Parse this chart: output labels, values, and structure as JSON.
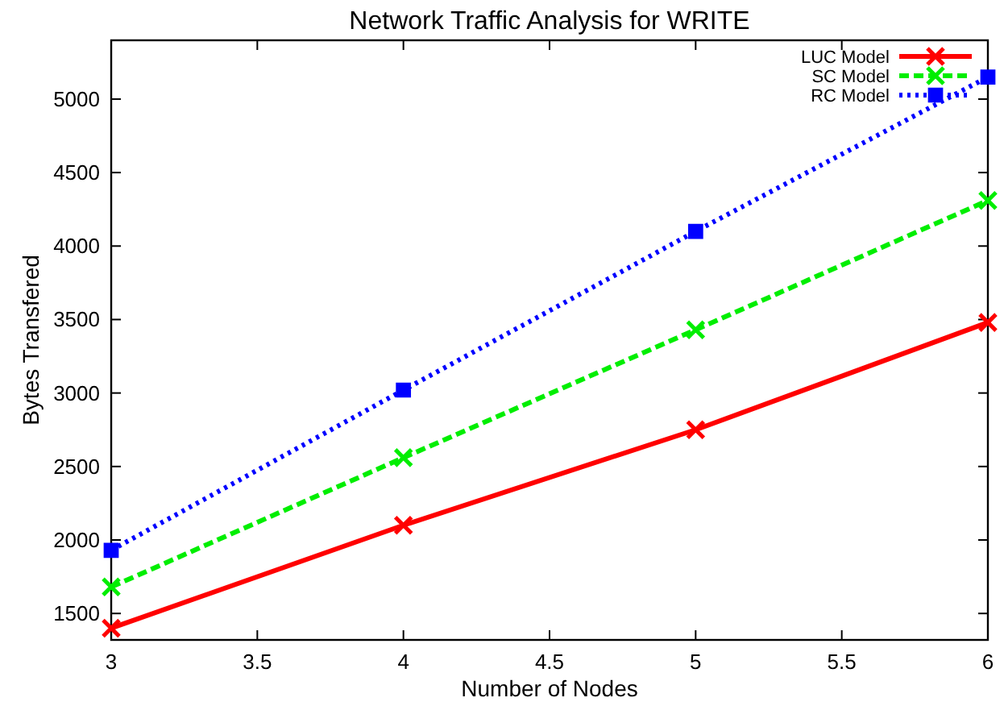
{
  "chart_data": {
    "type": "line",
    "title": "Network Traffic Analysis for WRITE",
    "xlabel": "Number of Nodes",
    "ylabel": "Bytes Transfered",
    "x": [
      3,
      4,
      5,
      6
    ],
    "series": [
      {
        "name": "LUC Model",
        "color": "#ff0000",
        "values": [
          1400,
          2100,
          2750,
          3480
        ],
        "marker": "cross",
        "line_style": "solid"
      },
      {
        "name": "SC Model",
        "color": "#00ee00",
        "values": [
          1680,
          2560,
          3430,
          4310
        ],
        "marker": "cross",
        "line_style": "dashed"
      },
      {
        "name": "RC Model",
        "color": "#0000ff",
        "values": [
          1930,
          3020,
          4100,
          5150
        ],
        "marker": "square",
        "line_style": "dotted"
      }
    ],
    "xlim": [
      3,
      6
    ],
    "xticks": [
      3,
      3.5,
      4,
      4.5,
      5,
      5.5,
      6
    ],
    "ylim": [
      1320,
      5400
    ],
    "yticks": [
      1500,
      2000,
      2500,
      3000,
      3500,
      4000,
      4500,
      5000
    ],
    "grid": false,
    "legend": "top right"
  }
}
